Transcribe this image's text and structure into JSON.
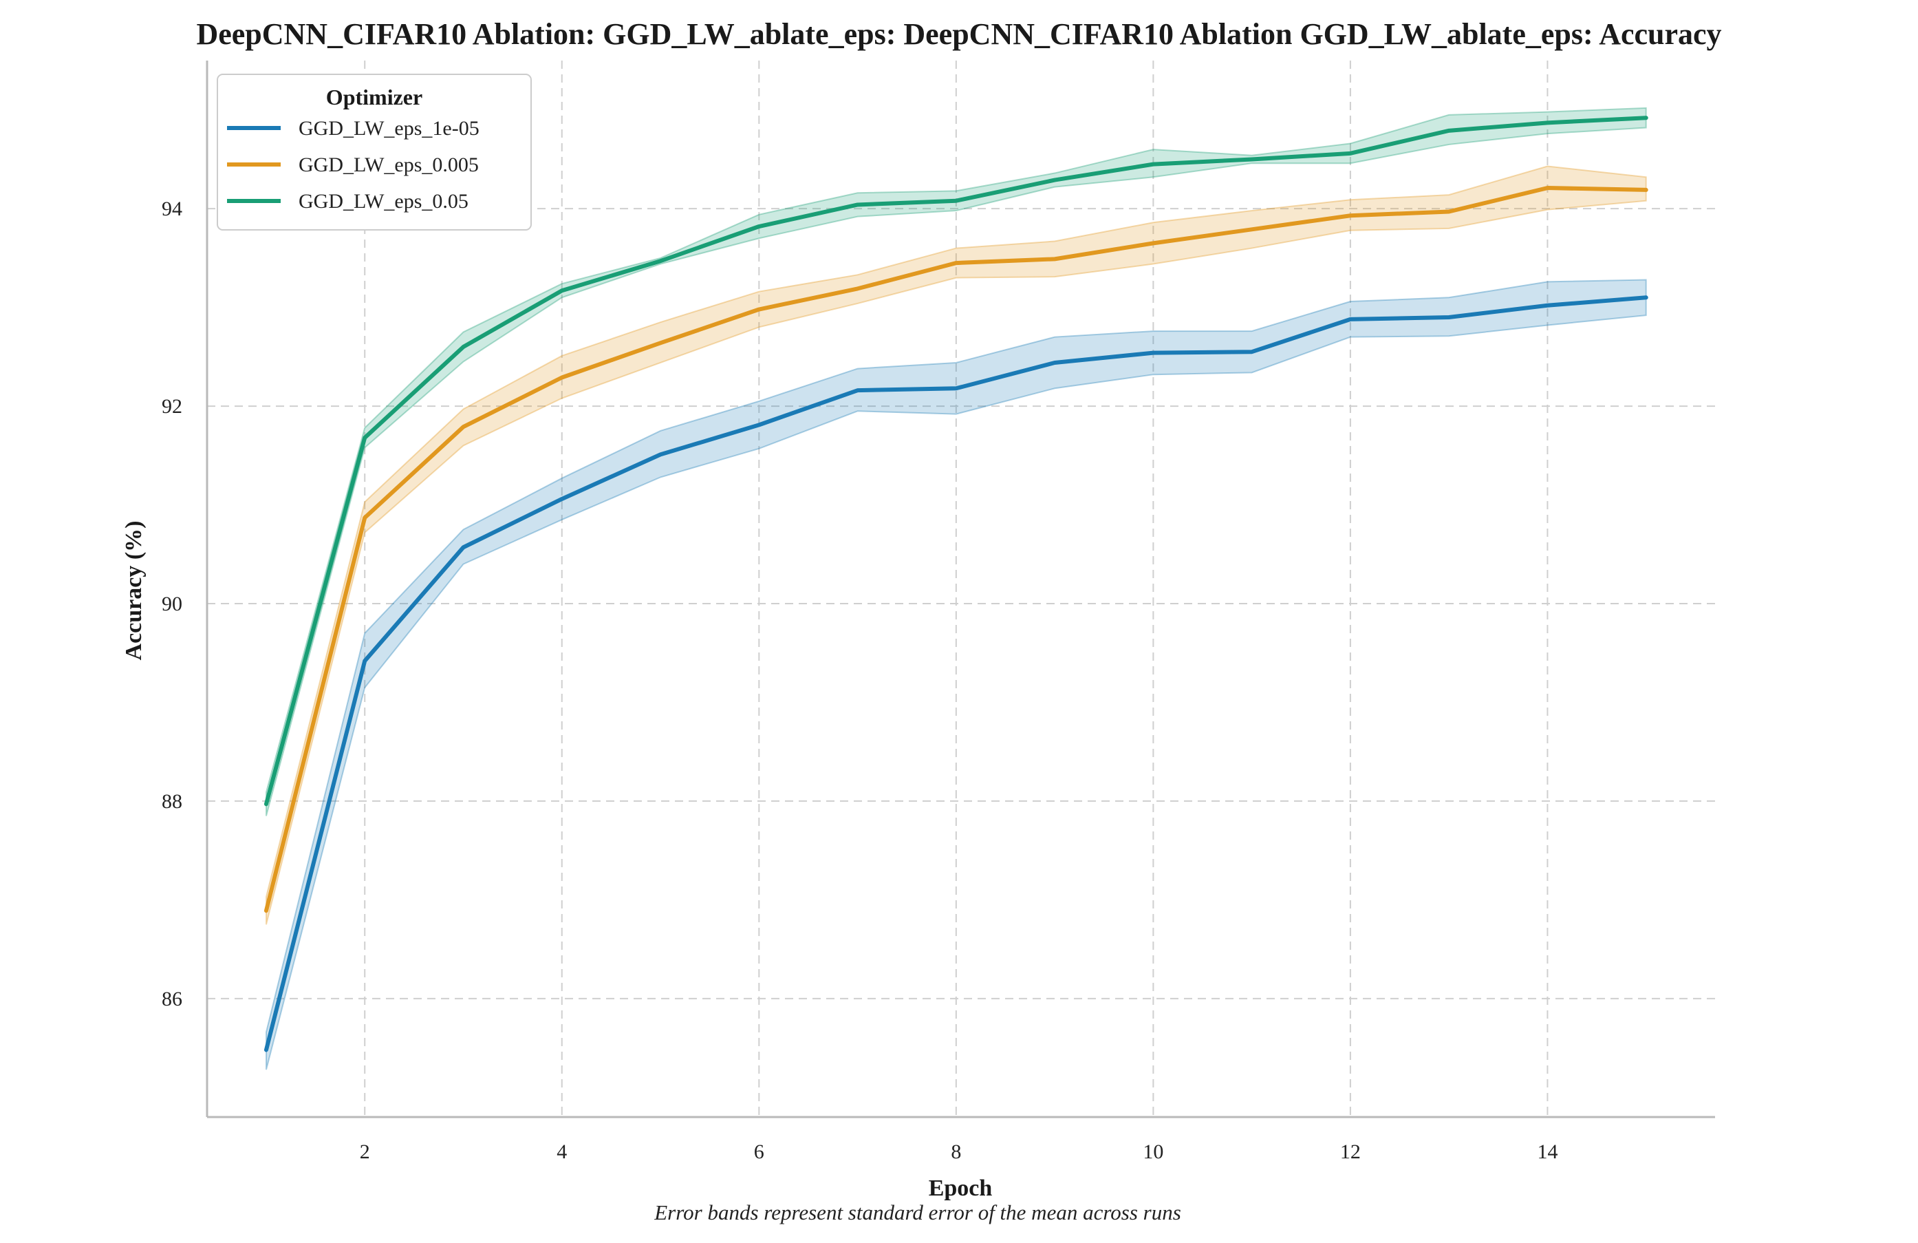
{
  "chart_data": {
    "type": "line",
    "title": "DeepCNN_CIFAR10 Ablation: GGD_LW_ablate_eps: DeepCNN_CIFAR10 Ablation GGD_LW_ablate_eps: Accuracy",
    "xlabel": "Epoch",
    "ylabel": "Accuracy (%)",
    "note": "Error bands represent standard error of the mean across runs",
    "xlim": [
      0.4,
      15.7
    ],
    "ylim": [
      84.8,
      95.5
    ],
    "xticks": [
      2,
      4,
      6,
      8,
      10,
      12,
      14
    ],
    "yticks": [
      86,
      88,
      90,
      92,
      94
    ],
    "grid": true,
    "legend": {
      "title": "Optimizer",
      "position": "top-left"
    },
    "x": [
      1,
      2,
      3,
      4,
      5,
      6,
      7,
      8,
      9,
      10,
      11,
      12,
      13,
      14,
      15
    ],
    "series": [
      {
        "name": "GGD_LW_eps_1e-05",
        "color": "#1a7ab5",
        "values": [
          85.48,
          89.42,
          90.57,
          91.06,
          91.51,
          91.81,
          92.16,
          92.18,
          92.44,
          92.54,
          92.55,
          92.88,
          92.9,
          93.02,
          93.1
        ],
        "lower": [
          85.28,
          89.15,
          90.4,
          90.85,
          91.28,
          91.57,
          91.95,
          91.92,
          92.18,
          92.32,
          92.34,
          92.7,
          92.71,
          92.82,
          92.92
        ],
        "upper": [
          85.66,
          89.7,
          90.75,
          91.27,
          91.75,
          92.05,
          92.38,
          92.44,
          92.7,
          92.76,
          92.76,
          93.06,
          93.1,
          93.26,
          93.28
        ]
      },
      {
        "name": "GGD_LW_eps_0.005",
        "color": "#e1981f",
        "values": [
          86.89,
          90.87,
          91.79,
          92.29,
          92.64,
          92.98,
          93.19,
          93.45,
          93.49,
          93.65,
          93.79,
          93.93,
          93.97,
          94.21,
          94.19
        ],
        "lower": [
          86.75,
          90.72,
          91.6,
          92.08,
          92.44,
          92.8,
          93.04,
          93.3,
          93.31,
          93.44,
          93.6,
          93.78,
          93.8,
          93.99,
          94.08
        ],
        "upper": [
          87.03,
          91.03,
          91.97,
          92.51,
          92.85,
          93.16,
          93.33,
          93.6,
          93.67,
          93.86,
          93.98,
          94.09,
          94.14,
          94.43,
          94.32
        ]
      },
      {
        "name": "GGD_LW_eps_0.05",
        "color": "#199e75",
        "values": [
          87.97,
          91.68,
          92.6,
          93.17,
          93.47,
          93.82,
          94.04,
          94.08,
          94.29,
          94.45,
          94.5,
          94.56,
          94.79,
          94.87,
          94.92
        ],
        "lower": [
          87.85,
          91.58,
          92.45,
          93.1,
          93.44,
          93.7,
          93.92,
          93.98,
          94.22,
          94.32,
          94.46,
          94.46,
          94.65,
          94.76,
          94.82
        ],
        "upper": [
          88.09,
          91.78,
          92.75,
          93.24,
          93.5,
          93.94,
          94.16,
          94.18,
          94.36,
          94.6,
          94.54,
          94.66,
          94.95,
          94.98,
          95.02
        ]
      }
    ]
  }
}
